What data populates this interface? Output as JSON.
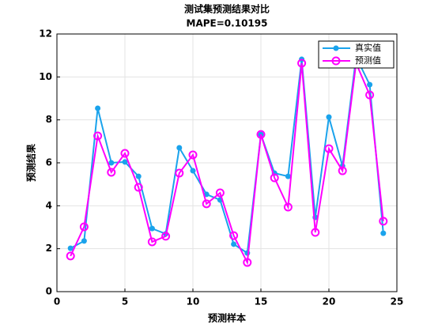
{
  "chart_data": {
    "type": "line",
    "title": "测试集预测结果对比",
    "subtitle": "MAPE=0.10195",
    "x_label": "预测样本",
    "y_label": "预测结果",
    "x": [
      1,
      2,
      3,
      4,
      5,
      6,
      7,
      8,
      9,
      10,
      11,
      12,
      13,
      14,
      15,
      16,
      17,
      18,
      19,
      20,
      21,
      22,
      23,
      24
    ],
    "series": [
      {
        "name": "真实值",
        "color": "#1aa3ec",
        "marker": "filled-dot",
        "values": [
          2.02,
          2.36,
          8.54,
          6.0,
          6.04,
          5.37,
          2.94,
          2.69,
          6.7,
          5.63,
          4.53,
          4.27,
          2.21,
          1.8,
          7.32,
          5.52,
          5.37,
          10.82,
          3.46,
          8.13,
          5.85,
          10.93,
          9.64,
          2.72
        ]
      },
      {
        "name": "预测值",
        "color": "#ff00ff",
        "marker": "open-circle",
        "values": [
          1.66,
          3.02,
          7.25,
          5.56,
          6.44,
          4.86,
          2.32,
          2.58,
          5.52,
          6.37,
          4.09,
          4.6,
          2.61,
          1.36,
          7.32,
          5.3,
          3.94,
          10.64,
          2.76,
          6.66,
          5.63,
          10.64,
          9.16,
          3.28
        ]
      }
    ],
    "xlim": [
      0,
      25
    ],
    "xticks": [
      0,
      5,
      10,
      15,
      20,
      25
    ],
    "ylim": [
      0,
      12
    ],
    "yticks": [
      0,
      2,
      4,
      6,
      8,
      10,
      12
    ],
    "grid": true,
    "legend": "northeast"
  }
}
